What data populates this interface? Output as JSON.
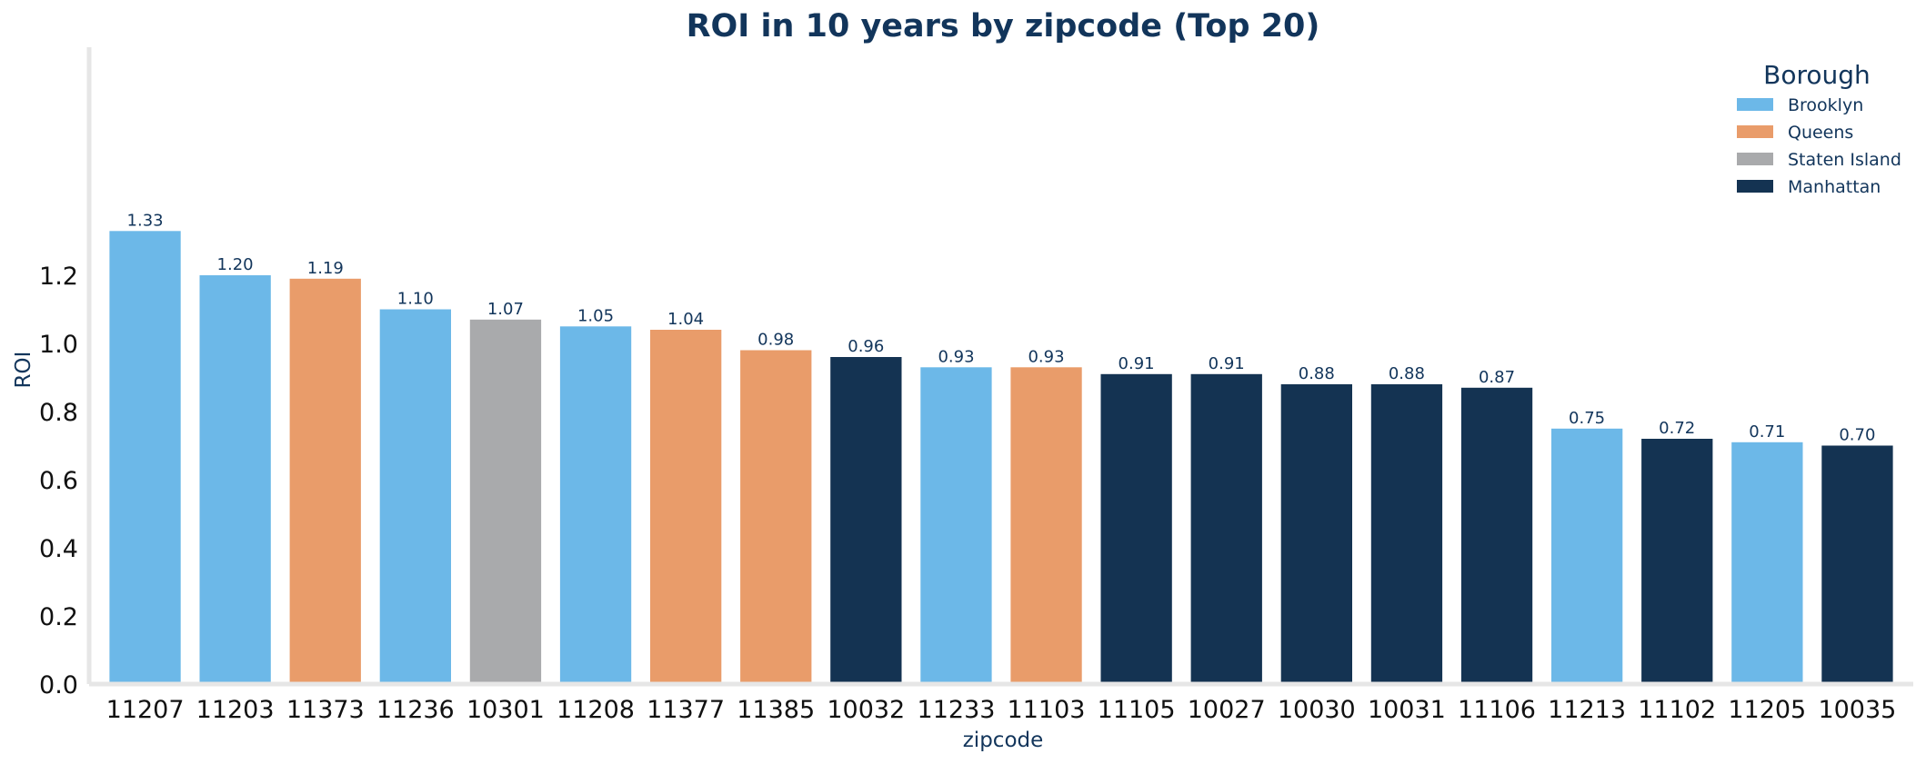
{
  "chart_data": {
    "type": "bar",
    "title": "ROI in 10 years by zipcode (Top 20)",
    "xlabel": "zipcode",
    "ylabel": "ROI",
    "ylim": [
      0,
      1.4
    ],
    "yticks": [
      "0.0",
      "0.2",
      "0.4",
      "0.6",
      "0.8",
      "1.0",
      "1.2"
    ],
    "grid": false,
    "legend": {
      "title": "Borough",
      "placement": "top-right",
      "entries": [
        {
          "name": "Brooklyn",
          "color": "#6cb8e8"
        },
        {
          "name": "Queens",
          "color": "#e99c6a"
        },
        {
          "name": "Staten Island",
          "color": "#a9aaac"
        },
        {
          "name": "Manhattan",
          "color": "#143352"
        }
      ]
    },
    "categories": [
      "11207",
      "11203",
      "11373",
      "11236",
      "10301",
      "11208",
      "11377",
      "11385",
      "10032",
      "11233",
      "11103",
      "11105",
      "10027",
      "10030",
      "10031",
      "11106",
      "11213",
      "11102",
      "11205",
      "10035"
    ],
    "values": [
      1.33,
      1.2,
      1.19,
      1.1,
      1.07,
      1.05,
      1.04,
      0.98,
      0.96,
      0.93,
      0.93,
      0.91,
      0.91,
      0.88,
      0.88,
      0.87,
      0.75,
      0.72,
      0.71,
      0.7
    ],
    "value_labels": [
      "1.33",
      "1.20",
      "1.19",
      "1.10",
      "1.07",
      "1.05",
      "1.04",
      "0.98",
      "0.96",
      "0.93",
      "0.93",
      "0.91",
      "0.91",
      "0.88",
      "0.88",
      "0.87",
      "0.75",
      "0.72",
      "0.71",
      "0.70"
    ],
    "borough": [
      "Brooklyn",
      "Brooklyn",
      "Queens",
      "Brooklyn",
      "Staten Island",
      "Brooklyn",
      "Queens",
      "Queens",
      "Manhattan",
      "Brooklyn",
      "Queens",
      "Manhattan",
      "Manhattan",
      "Manhattan",
      "Manhattan",
      "Manhattan",
      "Brooklyn",
      "Manhattan",
      "Brooklyn",
      "Manhattan"
    ]
  }
}
